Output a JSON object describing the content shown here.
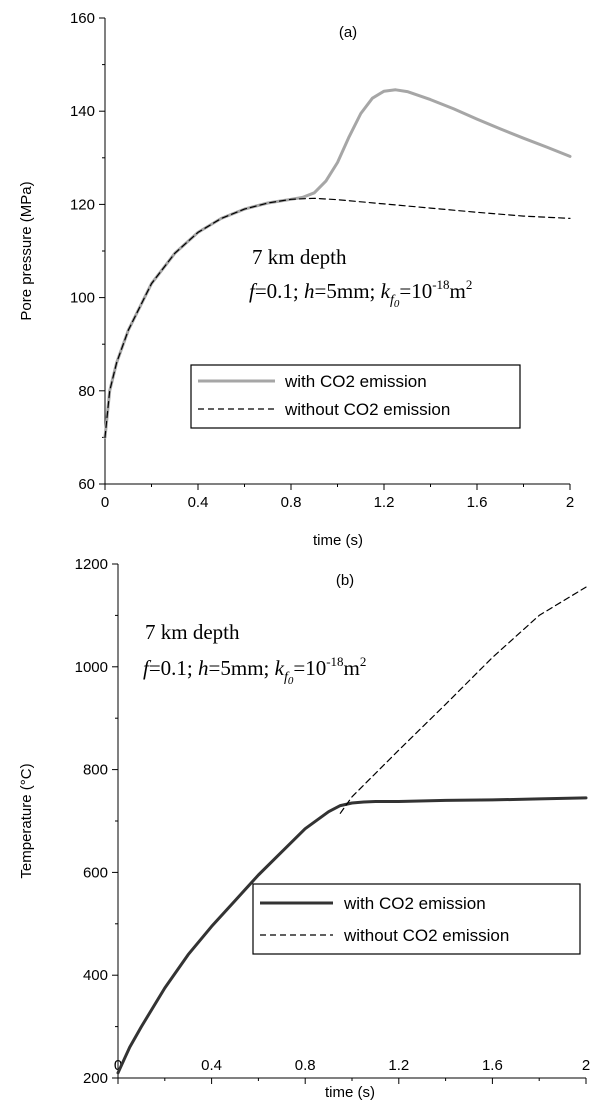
{
  "chart_data": [
    {
      "type": "line",
      "panel_label": "(a)",
      "xlabel": "time (s)",
      "ylabel": "Pore pressure (MPa)",
      "xlim": [
        0,
        2
      ],
      "ylim": [
        60,
        160
      ],
      "xticks": [
        0,
        0.4,
        0.8,
        1.2,
        1.6,
        2
      ],
      "xtick_labels": [
        "0",
        "0.4",
        "0.8",
        "1.2",
        "1.6",
        "2"
      ],
      "yticks": [
        60,
        80,
        100,
        120,
        140,
        160
      ],
      "ytick_labels": [
        "60",
        "80",
        "100",
        "120",
        "140",
        "160"
      ],
      "annotation": {
        "line1": "7 km depth",
        "f_sym": "f",
        "f_val": "=0.1; ",
        "h_sym": "h",
        "h_val": "=5mm; ",
        "k_sym": "k",
        "k_sub": "f",
        "k_subsub": "0",
        "k_eq": "=10",
        "k_exp": "-18",
        "k_unit": "m",
        "k_unit_exp": "2"
      },
      "legend_position": "center",
      "series": [
        {
          "name": "with CO2 emission",
          "color": "#a6a6a6",
          "dash": "solid",
          "x": [
            0,
            0.02,
            0.05,
            0.1,
            0.2,
            0.3,
            0.4,
            0.5,
            0.6,
            0.7,
            0.8,
            0.85,
            0.9,
            0.95,
            1.0,
            1.05,
            1.1,
            1.15,
            1.2,
            1.25,
            1.3,
            1.4,
            1.5,
            1.6,
            1.7,
            1.8,
            1.9,
            2.0
          ],
          "y": [
            70,
            80,
            86,
            93,
            103,
            109.5,
            114,
            117,
            119,
            120.3,
            121.1,
            121.5,
            122.5,
            125,
            129,
            134.5,
            139.5,
            142.8,
            144.3,
            144.6,
            144.2,
            142.5,
            140.5,
            138.3,
            136.2,
            134.2,
            132.3,
            130.3
          ]
        },
        {
          "name": "without CO2 emission",
          "color": "#000000",
          "dash": "dashed",
          "x": [
            0,
            0.02,
            0.05,
            0.1,
            0.2,
            0.3,
            0.4,
            0.5,
            0.6,
            0.7,
            0.8,
            0.9,
            1.0,
            1.2,
            1.4,
            1.6,
            1.8,
            2.0
          ],
          "y": [
            70,
            80,
            86,
            93,
            103,
            109.5,
            114,
            117,
            119,
            120.3,
            121.1,
            121.3,
            121,
            120.1,
            119.2,
            118.3,
            117.5,
            117
          ]
        }
      ]
    },
    {
      "type": "line",
      "panel_label": "(b)",
      "xlabel": "time (s)",
      "ylabel": "Temperature (°C)",
      "xlim": [
        0,
        2
      ],
      "ylim": [
        200,
        1200
      ],
      "xticks": [
        0,
        0.4,
        0.8,
        1.2,
        1.6,
        2
      ],
      "xtick_labels": [
        "0",
        "0.4",
        "0.8",
        "1.2",
        "1.6",
        "2"
      ],
      "yticks": [
        200,
        400,
        600,
        800,
        1000,
        1200
      ],
      "ytick_labels": [
        "200",
        "400",
        "600",
        "800",
        "1000",
        "1200"
      ],
      "annotation": {
        "line1": "7 km depth",
        "f_sym": "f",
        "f_val": "=0.1; ",
        "h_sym": "h",
        "h_val": "=5mm; ",
        "k_sym": "k",
        "k_sub": "f",
        "k_subsub": "0",
        "k_eq": "=10",
        "k_exp": "-18",
        "k_unit": "m",
        "k_unit_exp": "2"
      },
      "legend_position": "bottom-right",
      "series": [
        {
          "name": "with CO2 emission",
          "color": "#333333",
          "dash": "solid",
          "x": [
            0,
            0.05,
            0.1,
            0.2,
            0.3,
            0.4,
            0.5,
            0.6,
            0.7,
            0.8,
            0.9,
            0.95,
            1.0,
            1.05,
            1.1,
            1.15,
            1.2,
            1.4,
            1.6,
            1.8,
            2.0
          ],
          "y": [
            210,
            260,
            300,
            375,
            440,
            495,
            545,
            595,
            640,
            685,
            718,
            730,
            735,
            737,
            738,
            738,
            738,
            740,
            741,
            743,
            745
          ]
        },
        {
          "name": "without CO2 emission",
          "color": "#000000",
          "dash": "dashed",
          "x": [
            0.95,
            1.0,
            1.2,
            1.4,
            1.6,
            1.8,
            2.0
          ],
          "y": [
            715,
            747,
            838,
            927,
            1018,
            1100,
            1155
          ]
        }
      ]
    }
  ]
}
